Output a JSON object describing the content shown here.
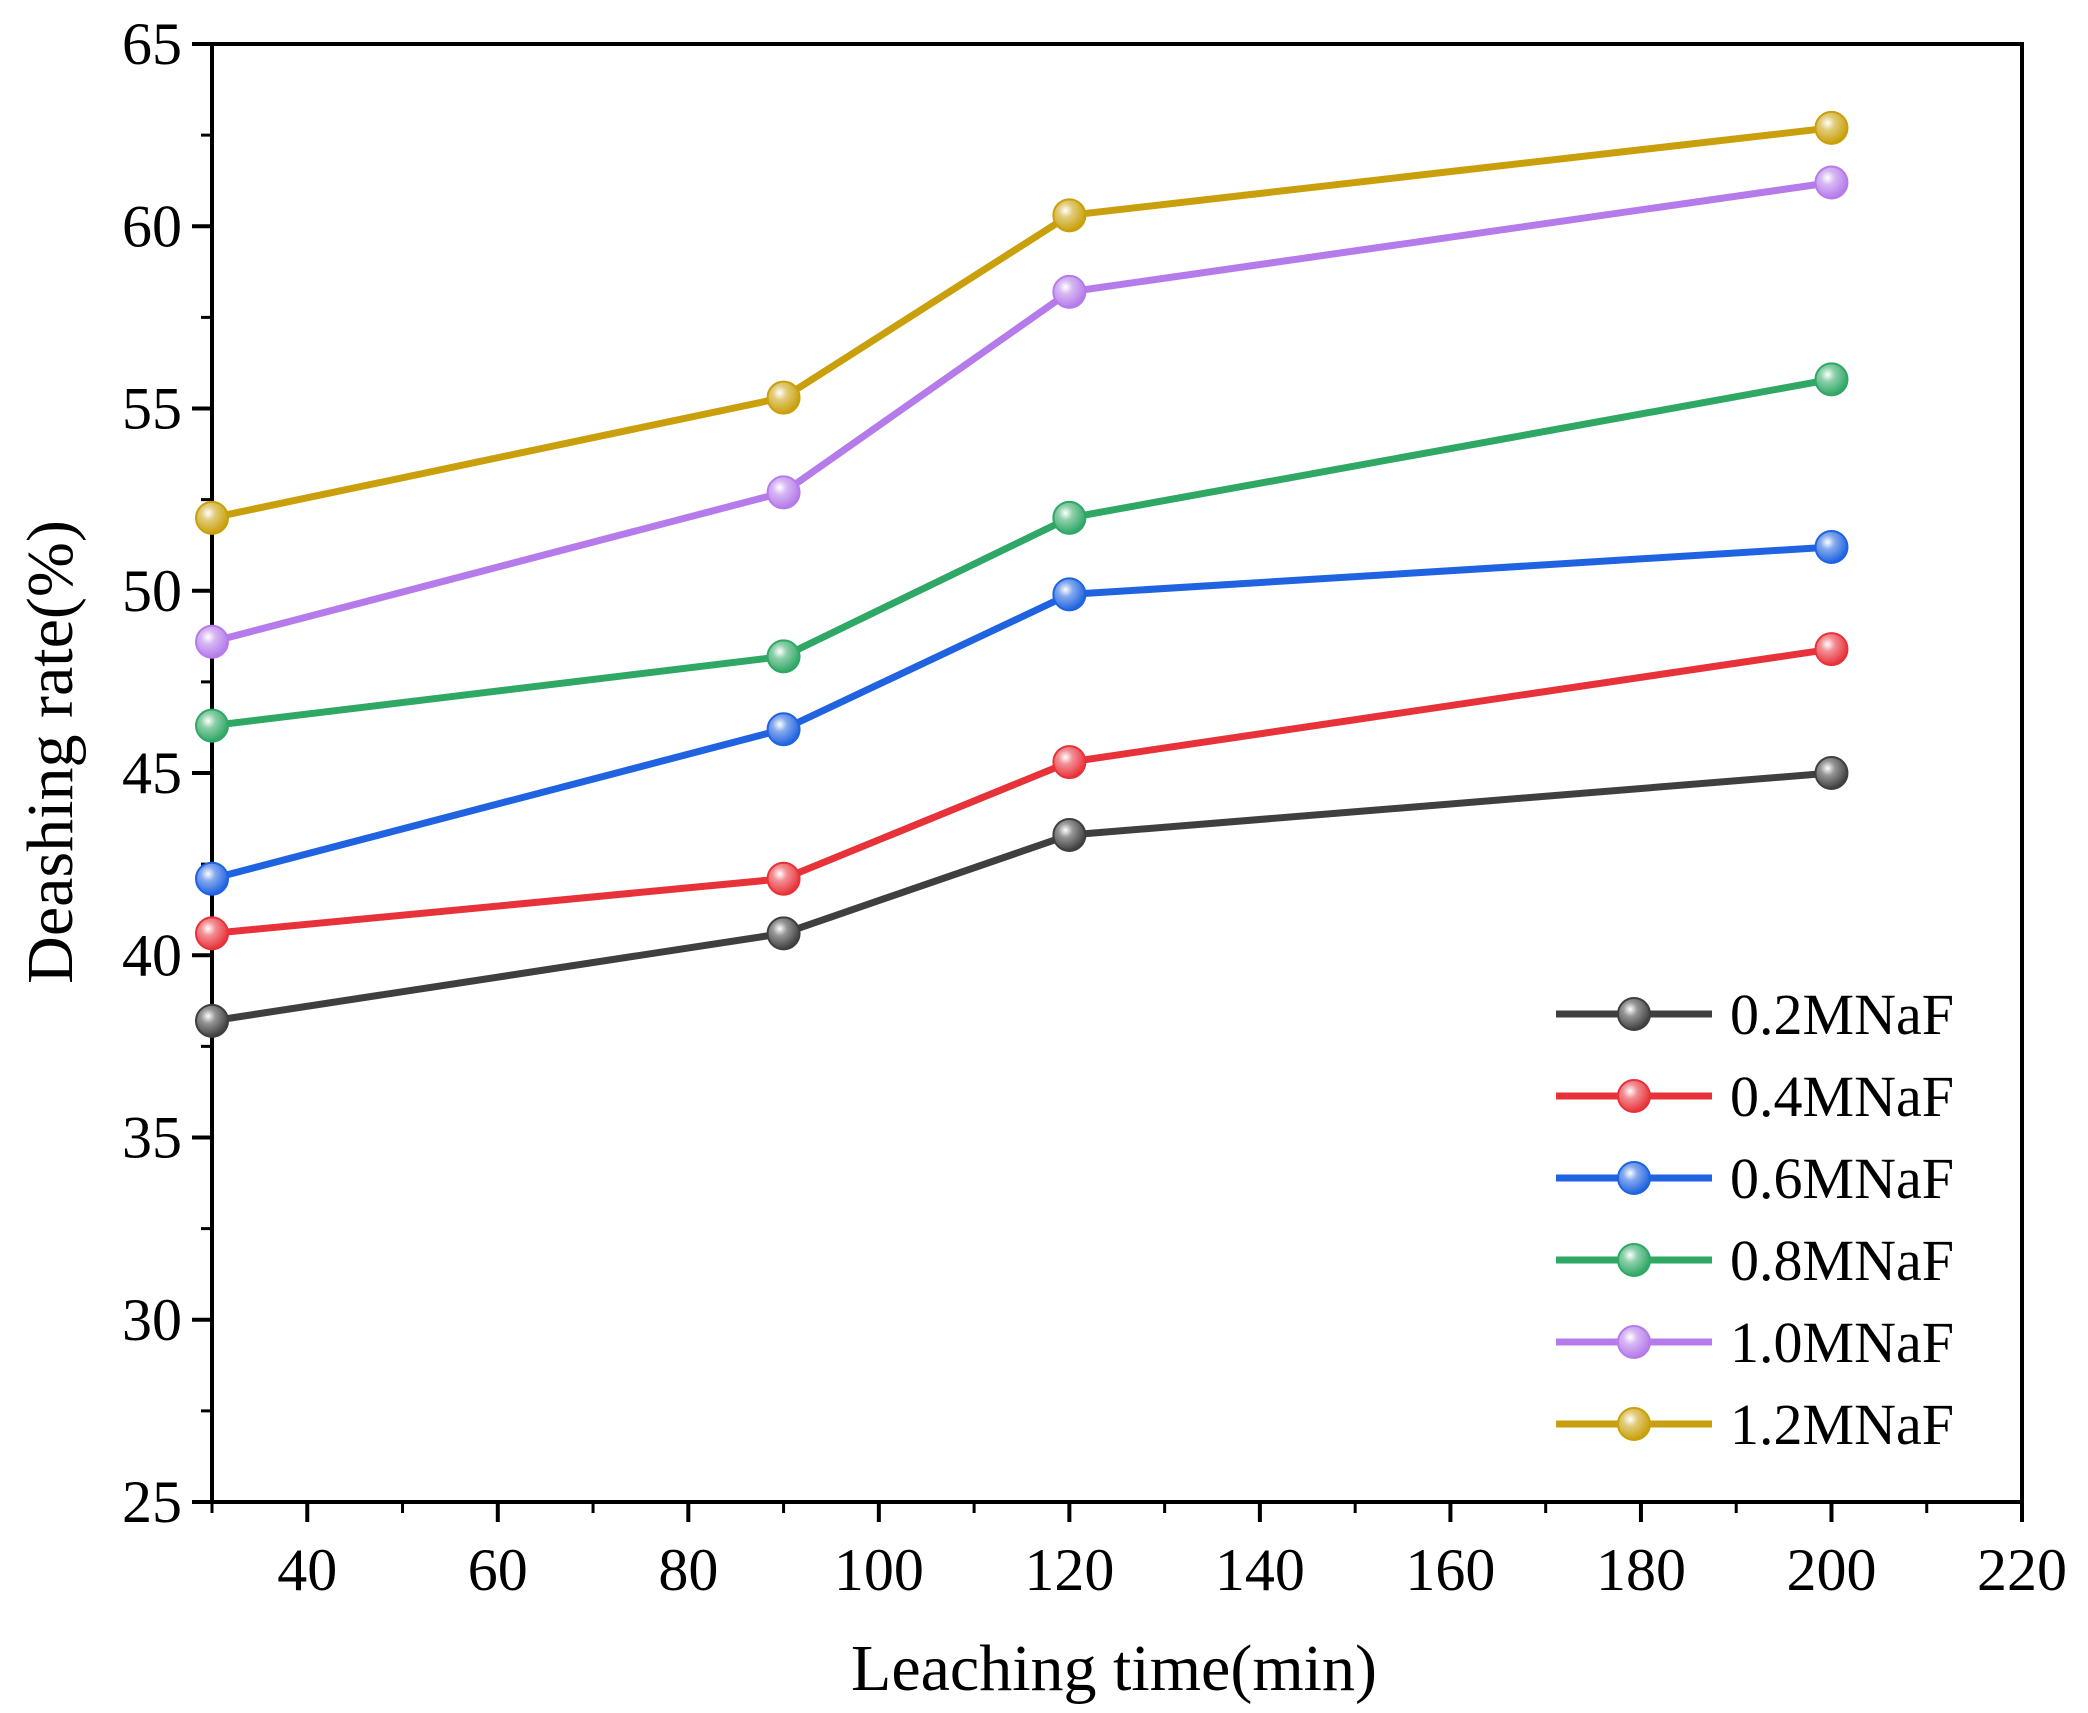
{
  "chart_data": {
    "type": "line",
    "title": "",
    "xlabel": "Leaching time(min)",
    "ylabel": "Deashing rate(%)",
    "xlim": [
      30,
      220
    ],
    "ylim": [
      25,
      65
    ],
    "xticks": [
      40,
      60,
      80,
      100,
      120,
      140,
      160,
      180,
      200,
      220
    ],
    "yticks": [
      25,
      30,
      35,
      40,
      45,
      50,
      55,
      60,
      65
    ],
    "x": [
      30,
      90,
      120,
      200
    ],
    "grid": false,
    "legend_position": "bottom-right",
    "series": [
      {
        "name": "0.2MNaF",
        "color": "#3f3f3f",
        "values": [
          38.2,
          40.6,
          43.3,
          45.0
        ]
      },
      {
        "name": "0.4MNaF",
        "color": "#e8323a",
        "values": [
          40.6,
          42.1,
          45.3,
          48.4
        ]
      },
      {
        "name": "0.6MNaF",
        "color": "#1f63e0",
        "values": [
          42.1,
          46.2,
          49.9,
          51.2
        ]
      },
      {
        "name": "0.8MNaF",
        "color": "#2fa765",
        "values": [
          46.3,
          48.2,
          52.0,
          55.8
        ]
      },
      {
        "name": "1.0MNaF",
        "color": "#b57bea",
        "values": [
          48.6,
          52.7,
          58.2,
          61.2
        ]
      },
      {
        "name": "1.2MNaF",
        "color": "#c9a00b",
        "values": [
          52.0,
          55.3,
          60.3,
          62.7
        ]
      }
    ]
  }
}
